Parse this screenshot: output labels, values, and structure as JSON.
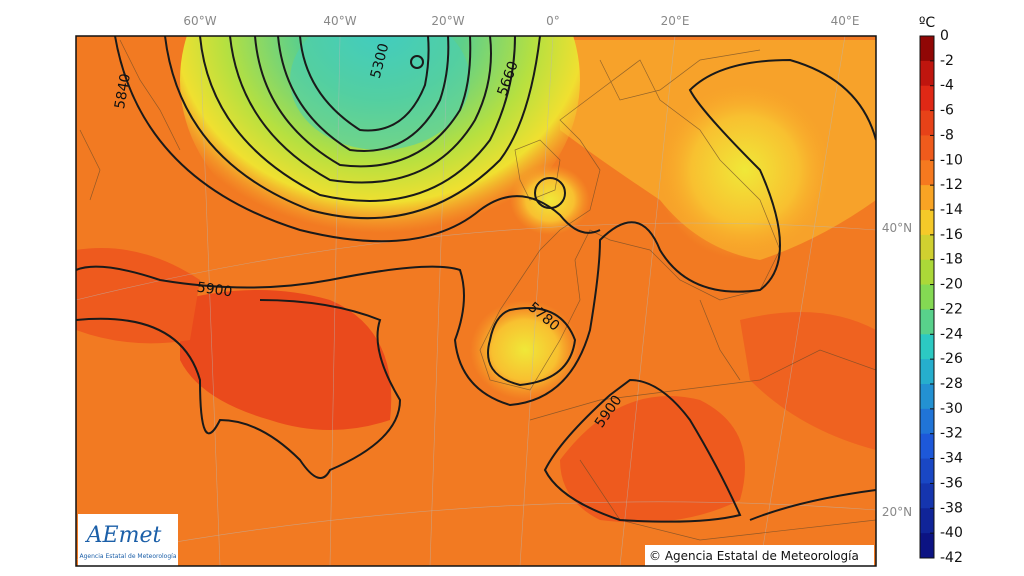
{
  "map": {
    "longitude_labels": [
      "60°W",
      "40°W",
      "20°W",
      "0°",
      "20°E",
      "40°E"
    ],
    "latitude_labels": [
      "40°N",
      "20°N"
    ],
    "contour_labels": [
      "5840",
      "5300",
      "5660",
      "5900",
      "5780",
      "5900"
    ]
  },
  "colorbar": {
    "unit": "ºC",
    "ticks": [
      0,
      -2,
      -4,
      -6,
      -8,
      -10,
      -12,
      -14,
      -16,
      -18,
      -20,
      -22,
      -24,
      -26,
      -28,
      -30,
      -32,
      -34,
      -36,
      -38,
      -40,
      -42
    ]
  },
  "logo": {
    "name": "AEmet",
    "subtitle": "Agencia Estatal de Meteorología"
  },
  "copyright": "© Agencia Estatal de Meteorología"
}
